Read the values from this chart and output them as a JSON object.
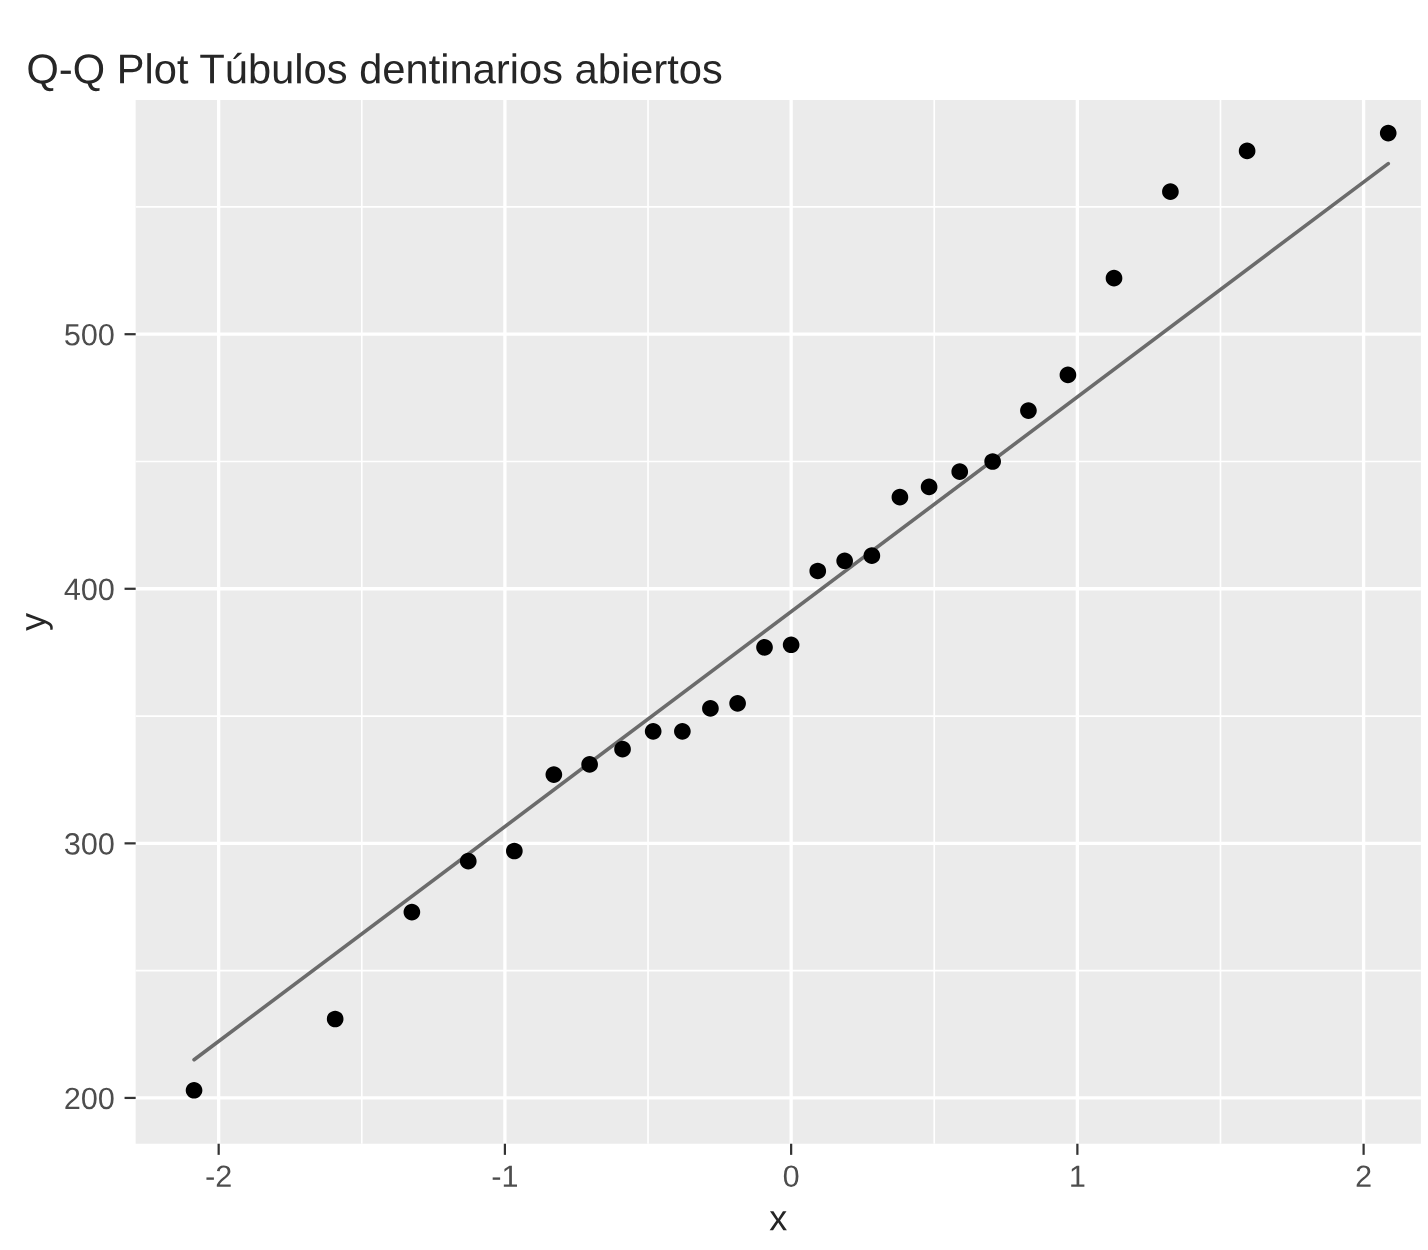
{
  "chart_data": {
    "type": "scatter",
    "title": "Q-Q Plot Túbulos dentinarios abiertos",
    "xlabel": "x",
    "ylabel": "y",
    "xlim": [
      -2.29,
      2.2
    ],
    "xticks": [
      -2,
      -1,
      0,
      1,
      2
    ],
    "ylim": [
      182,
      592
    ],
    "yticks": [
      200,
      300,
      400,
      500
    ],
    "grid": true,
    "series": [
      {
        "marker": "circle",
        "color": "#000000",
        "x": [
          -2.086,
          -1.593,
          -1.325,
          -1.128,
          -0.967,
          -0.829,
          -0.704,
          -0.589,
          -0.482,
          -0.38,
          -0.282,
          -0.187,
          -0.093,
          0,
          0.093,
          0.187,
          0.282,
          0.38,
          0.482,
          0.589,
          0.704,
          0.829,
          0.967,
          1.128,
          1.325,
          1.593,
          2.086
        ],
        "values": [
          203,
          231,
          273,
          293,
          297,
          327,
          331,
          337,
          344,
          344,
          353,
          355,
          377,
          378,
          407,
          411,
          413,
          436,
          440,
          446,
          450,
          470,
          484,
          522,
          556,
          572,
          579
        ]
      },
      {
        "type": "line",
        "marker": "none",
        "color": "#6b6b6b",
        "x": [
          -2.086,
          2.086
        ],
        "values": [
          215,
          567
        ]
      }
    ]
  }
}
